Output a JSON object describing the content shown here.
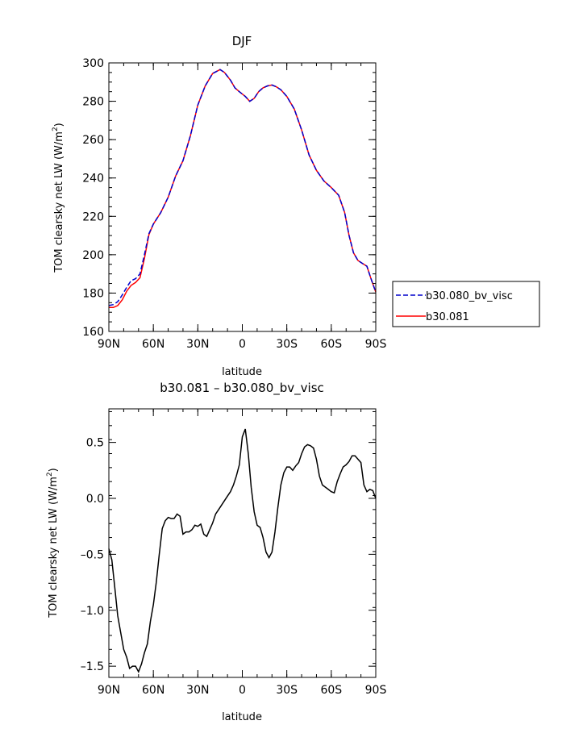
{
  "chart_data": [
    {
      "type": "line",
      "title": "DJF",
      "xlabel": "latitude",
      "ylabel": "TOM clearsky net LW (W/m",
      "ylabel_sup": "2",
      "ylabel_end": ")",
      "xlim": [
        90,
        -90
      ],
      "ylim": [
        160,
        300
      ],
      "xticks": [
        90,
        60,
        30,
        0,
        -30,
        -60,
        -90
      ],
      "xtick_labels": [
        "90N",
        "60N",
        "30N",
        "0",
        "30S",
        "60S",
        "90S"
      ],
      "yticks": [
        160,
        180,
        200,
        220,
        240,
        260,
        280,
        300
      ],
      "ytick_labels": [
        "160",
        "180",
        "200",
        "220",
        "240",
        "260",
        "280",
        "300"
      ],
      "legend_position": "right",
      "series": [
        {
          "name": "b30.080_bv_visc",
          "color": "#0000cc",
          "dash": "dashed",
          "x": [
            90,
            87,
            84,
            81,
            78,
            75,
            72,
            69,
            66,
            63,
            60,
            55,
            50,
            45,
            40,
            35,
            30,
            25,
            20,
            15,
            12,
            8,
            5,
            2,
            -2,
            -5,
            -8,
            -11,
            -14,
            -17,
            -20,
            -23,
            -26,
            -30,
            -35,
            -40,
            -45,
            -50,
            -55,
            -60,
            -65,
            -69,
            -72,
            -75,
            -78,
            -81,
            -84,
            -87,
            -90
          ],
          "y": [
            173.5,
            174,
            175.5,
            179,
            183,
            186.5,
            187.5,
            190,
            200,
            211,
            216,
            222,
            230,
            241,
            249,
            262,
            278,
            288,
            294.5,
            296.5,
            295,
            291,
            287,
            285,
            282.5,
            280,
            281.5,
            285,
            287,
            288,
            288.5,
            287.5,
            286,
            282.5,
            276,
            265,
            252,
            244,
            238.5,
            235,
            231,
            222,
            210,
            201,
            197,
            195.5,
            194,
            187,
            180.5
          ]
        },
        {
          "name": "b30.081",
          "color": "#ff0000",
          "dash": "solid",
          "x": [
            90,
            87,
            84,
            81,
            78,
            75,
            72,
            69,
            66,
            63,
            60,
            55,
            50,
            45,
            40,
            35,
            30,
            25,
            20,
            15,
            12,
            8,
            5,
            2,
            -2,
            -5,
            -8,
            -11,
            -14,
            -17,
            -20,
            -23,
            -26,
            -30,
            -35,
            -40,
            -45,
            -50,
            -55,
            -60,
            -65,
            -69,
            -72,
            -75,
            -78,
            -81,
            -84,
            -87,
            -90
          ],
          "y": [
            172.5,
            172.5,
            173.5,
            176.5,
            181,
            184,
            185.5,
            188,
            198,
            210.5,
            216,
            222,
            230,
            241,
            249,
            262,
            278,
            288,
            294.5,
            296.5,
            295,
            291,
            287,
            285,
            282.5,
            280,
            281.5,
            285,
            287,
            288,
            288.5,
            287.5,
            286,
            282.5,
            276,
            265,
            252,
            244,
            238.5,
            235,
            231,
            222,
            210,
            201,
            197,
            195.5,
            194,
            187,
            180.5
          ]
        }
      ]
    },
    {
      "type": "line",
      "title": "b30.081 – b30.080_bv_visc",
      "xlabel": "latitude",
      "ylabel": "TOM clearsky net LW (W/m",
      "ylabel_sup": "2",
      "ylabel_end": ")",
      "xlim": [
        90,
        -90
      ],
      "ylim": [
        -1.6,
        0.8
      ],
      "xticks": [
        90,
        60,
        30,
        0,
        -30,
        -60,
        -90
      ],
      "xtick_labels": [
        "90N",
        "60N",
        "30N",
        "0",
        "30S",
        "60S",
        "90S"
      ],
      "yticks": [
        -1.5,
        -1.0,
        -0.5,
        0.0,
        0.5
      ],
      "ytick_labels": [
        "–1.5",
        "–1.0",
        "–0.5",
        "0.0",
        "0.5"
      ],
      "series": [
        {
          "name": "",
          "color": "#000000",
          "dash": "solid",
          "x": [
            90,
            88,
            86,
            84,
            82,
            80,
            78,
            76,
            74,
            72,
            70,
            68,
            66,
            64,
            62,
            60,
            58,
            56,
            54,
            52,
            50,
            48,
            46,
            44,
            42,
            40,
            38,
            36,
            34,
            32,
            30,
            28,
            26,
            24,
            22,
            20,
            18,
            16,
            14,
            12,
            10,
            8,
            6,
            4,
            2,
            0,
            -2,
            -4,
            -6,
            -8,
            -10,
            -12,
            -14,
            -16,
            -18,
            -20,
            -22,
            -24,
            -26,
            -28,
            -30,
            -32,
            -34,
            -36,
            -38,
            -40,
            -42,
            -44,
            -46,
            -48,
            -50,
            -52,
            -54,
            -56,
            -58,
            -60,
            -62,
            -64,
            -66,
            -68,
            -70,
            -72,
            -74,
            -76,
            -78,
            -80,
            -82,
            -84,
            -86,
            -88,
            -90
          ],
          "y": [
            -0.45,
            -0.55,
            -0.8,
            -1.05,
            -1.2,
            -1.35,
            -1.42,
            -1.52,
            -1.5,
            -1.5,
            -1.55,
            -1.48,
            -1.38,
            -1.3,
            -1.1,
            -0.95,
            -0.75,
            -0.5,
            -0.27,
            -0.2,
            -0.17,
            -0.18,
            -0.18,
            -0.14,
            -0.16,
            -0.32,
            -0.3,
            -0.3,
            -0.28,
            -0.24,
            -0.25,
            -0.23,
            -0.32,
            -0.34,
            -0.28,
            -0.22,
            -0.14,
            -0.1,
            -0.06,
            -0.02,
            0.02,
            0.06,
            0.12,
            0.2,
            0.3,
            0.55,
            0.62,
            0.4,
            0.1,
            -0.12,
            -0.24,
            -0.26,
            -0.35,
            -0.48,
            -0.53,
            -0.48,
            -0.3,
            -0.08,
            0.12,
            0.23,
            0.28,
            0.28,
            0.25,
            0.29,
            0.32,
            0.4,
            0.46,
            0.48,
            0.47,
            0.45,
            0.35,
            0.2,
            0.12,
            0.1,
            0.08,
            0.06,
            0.05,
            0.15,
            0.22,
            0.28,
            0.3,
            0.33,
            0.38,
            0.38,
            0.35,
            0.32,
            0.12,
            0.06,
            0.08,
            0.07,
            0.0
          ]
        }
      ]
    }
  ]
}
